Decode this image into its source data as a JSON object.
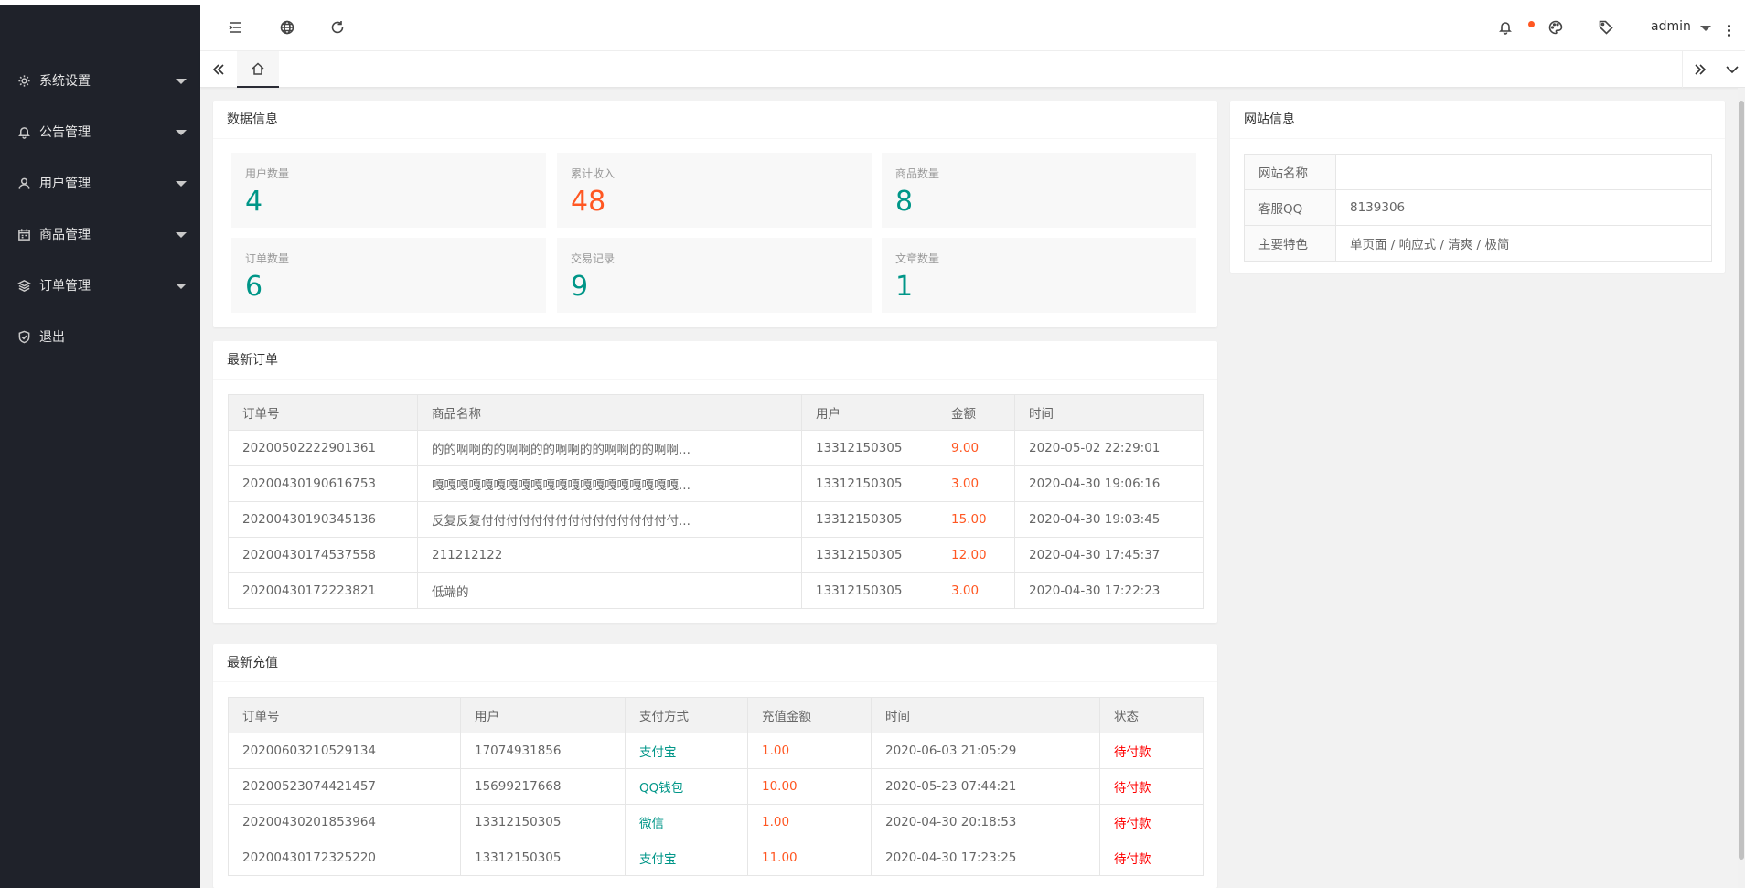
{
  "sidebar": {
    "items": [
      {
        "label": "系统设置",
        "icon": "gear-icon",
        "has_caret": true
      },
      {
        "label": "公告管理",
        "icon": "bell-icon",
        "has_caret": true
      },
      {
        "label": "用户管理",
        "icon": "user-icon",
        "has_caret": true
      },
      {
        "label": "商品管理",
        "icon": "calendar-icon",
        "has_caret": true
      },
      {
        "label": "订单管理",
        "icon": "layers-icon",
        "has_caret": true
      },
      {
        "label": "退出",
        "icon": "shield-icon",
        "has_caret": false
      }
    ]
  },
  "header": {
    "user": "admin",
    "notification_dot_color": "#ff5722"
  },
  "stats_card": {
    "title": "数据信息",
    "items": [
      {
        "label": "用户数量",
        "value": "4"
      },
      {
        "label": "累计收入",
        "value": "48"
      },
      {
        "label": "商品数量",
        "value": "8"
      },
      {
        "label": "订单数量",
        "value": "6"
      },
      {
        "label": "交易记录",
        "value": "9"
      },
      {
        "label": "文章数量",
        "value": "1"
      }
    ]
  },
  "orders_card": {
    "title": "最新订单",
    "headers": [
      "订单号",
      "商品名称",
      "用户",
      "金额",
      "时间"
    ],
    "rows": [
      [
        "20200502222901361",
        "的的啊啊的的啊啊的的啊啊的的啊啊的的啊啊...",
        "13312150305",
        "9.00",
        "2020-05-02 22:29:01"
      ],
      [
        "20200430190616753",
        "嘎嘎嘎嘎嘎嘎嘎嘎嘎嘎嘎嘎嘎嘎嘎嘎嘎嘎嘎嘎...",
        "13312150305",
        "3.00",
        "2020-04-30 19:06:16"
      ],
      [
        "20200430190345136",
        "反复反复付付付付付付付付付付付付付付付付...",
        "13312150305",
        "15.00",
        "2020-04-30 19:03:45"
      ],
      [
        "20200430174537558",
        "211212122",
        "13312150305",
        "12.00",
        "2020-04-30 17:45:37"
      ],
      [
        "20200430172223821",
        "低端的",
        "13312150305",
        "3.00",
        "2020-04-30 17:22:23"
      ]
    ]
  },
  "recharge_card": {
    "title": "最新充值",
    "headers": [
      "订单号",
      "用户",
      "支付方式",
      "充值金额",
      "时间",
      "状态"
    ],
    "rows": [
      [
        "20200603210529134",
        "17074931856",
        "支付宝",
        "1.00",
        "2020-06-03 21:05:29",
        "待付款"
      ],
      [
        "20200523074421457",
        "15699217668",
        "QQ钱包",
        "10.00",
        "2020-05-23 07:44:21",
        "待付款"
      ],
      [
        "20200430201853964",
        "13312150305",
        "微信",
        "1.00",
        "2020-04-30 20:18:53",
        "待付款"
      ],
      [
        "20200430172325220",
        "13312150305",
        "支付宝",
        "11.00",
        "2020-04-30 17:23:25",
        "待付款"
      ]
    ]
  },
  "site_card": {
    "title": "网站信息",
    "rows": [
      {
        "key": "网站名称",
        "value": ""
      },
      {
        "key": "客服QQ",
        "value": "8139306"
      },
      {
        "key": "主要特色",
        "value": "单页面 / 响应式 / 清爽 / 极简"
      }
    ]
  },
  "colors": {
    "sidebar_bg": "#1f222a",
    "accent_green": "#009688",
    "accent_orange": "#ff5722",
    "status_red": "#ff0000"
  }
}
